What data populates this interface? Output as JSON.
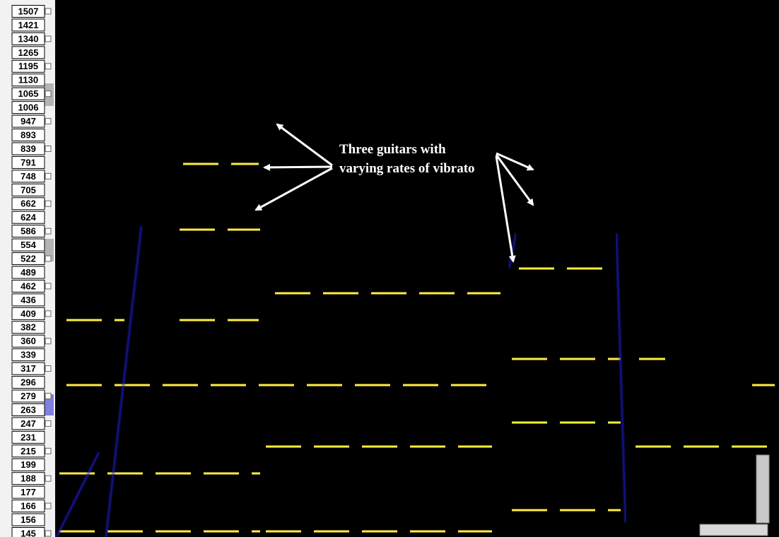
{
  "frequency_labels": [
    1507,
    1421,
    1340,
    1265,
    1195,
    1130,
    1065,
    1006,
    947,
    893,
    839,
    791,
    748,
    705,
    662,
    624,
    586,
    554,
    522,
    489,
    462,
    436,
    409,
    382,
    360,
    339,
    317,
    296,
    279,
    263,
    247,
    231,
    215,
    199,
    188,
    177,
    166,
    156,
    145
  ],
  "annotation": [
    "Three guitars with",
    "varying rates of vibrato"
  ]
}
